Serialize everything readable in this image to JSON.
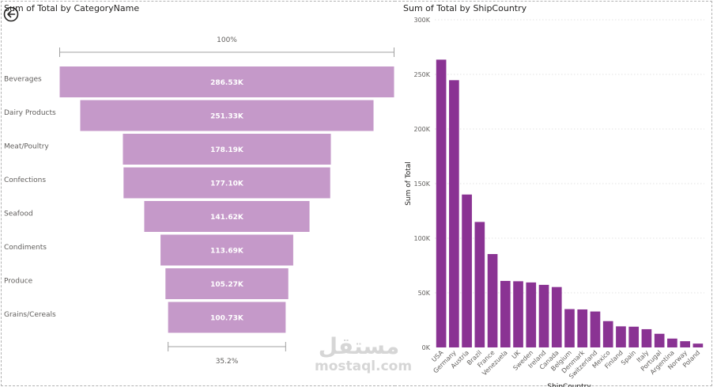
{
  "funnel": {
    "title": "Sum of Total by CategoryName",
    "top_label": "100%",
    "bottom_label": "35.2%",
    "color": "#c599c9",
    "chart_data": {
      "type": "funnel",
      "categories": [
        "Beverages",
        "Dairy Products",
        "Meat/Poultry",
        "Confections",
        "Seafood",
        "Condiments",
        "Produce",
        "Grains/Cereals"
      ],
      "values": [
        286530,
        251330,
        178190,
        177100,
        141620,
        113690,
        105270,
        100730
      ],
      "data_labels": [
        "286.53K",
        "251.33K",
        "178.19K",
        "177.10K",
        "141.62K",
        "113.69K",
        "105.27K",
        "100.73K"
      ]
    }
  },
  "bar": {
    "title": "Sum of Total by ShipCountry",
    "color": "#8a3393",
    "chart_data": {
      "type": "bar",
      "xlabel": "ShipCountry",
      "ylabel": "Sum of Total",
      "ylim": [
        0,
        300000
      ],
      "yticks": [
        0,
        50000,
        100000,
        150000,
        200000,
        250000,
        300000
      ],
      "ytick_labels": [
        "0K",
        "50K",
        "100K",
        "150K",
        "200K",
        "250K",
        "300K"
      ],
      "grid": true,
      "categories": [
        "USA",
        "Germany",
        "Austria",
        "Brazil",
        "France",
        "Venezuela",
        "UK",
        "Sweden",
        "Ireland",
        "Canada",
        "Belgium",
        "Denmark",
        "Switzerland",
        "Mexico",
        "Finland",
        "Spain",
        "Italy",
        "Portugal",
        "Argentina",
        "Norway",
        "Poland"
      ],
      "values": [
        263500,
        244700,
        140000,
        114900,
        85500,
        60900,
        60600,
        59500,
        57300,
        55300,
        35100,
        34800,
        32900,
        24100,
        19300,
        19000,
        16700,
        12500,
        8100,
        5700,
        3500
      ]
    }
  },
  "watermark": {
    "text": "mostaql.com",
    "logo_text": "مستقل"
  }
}
